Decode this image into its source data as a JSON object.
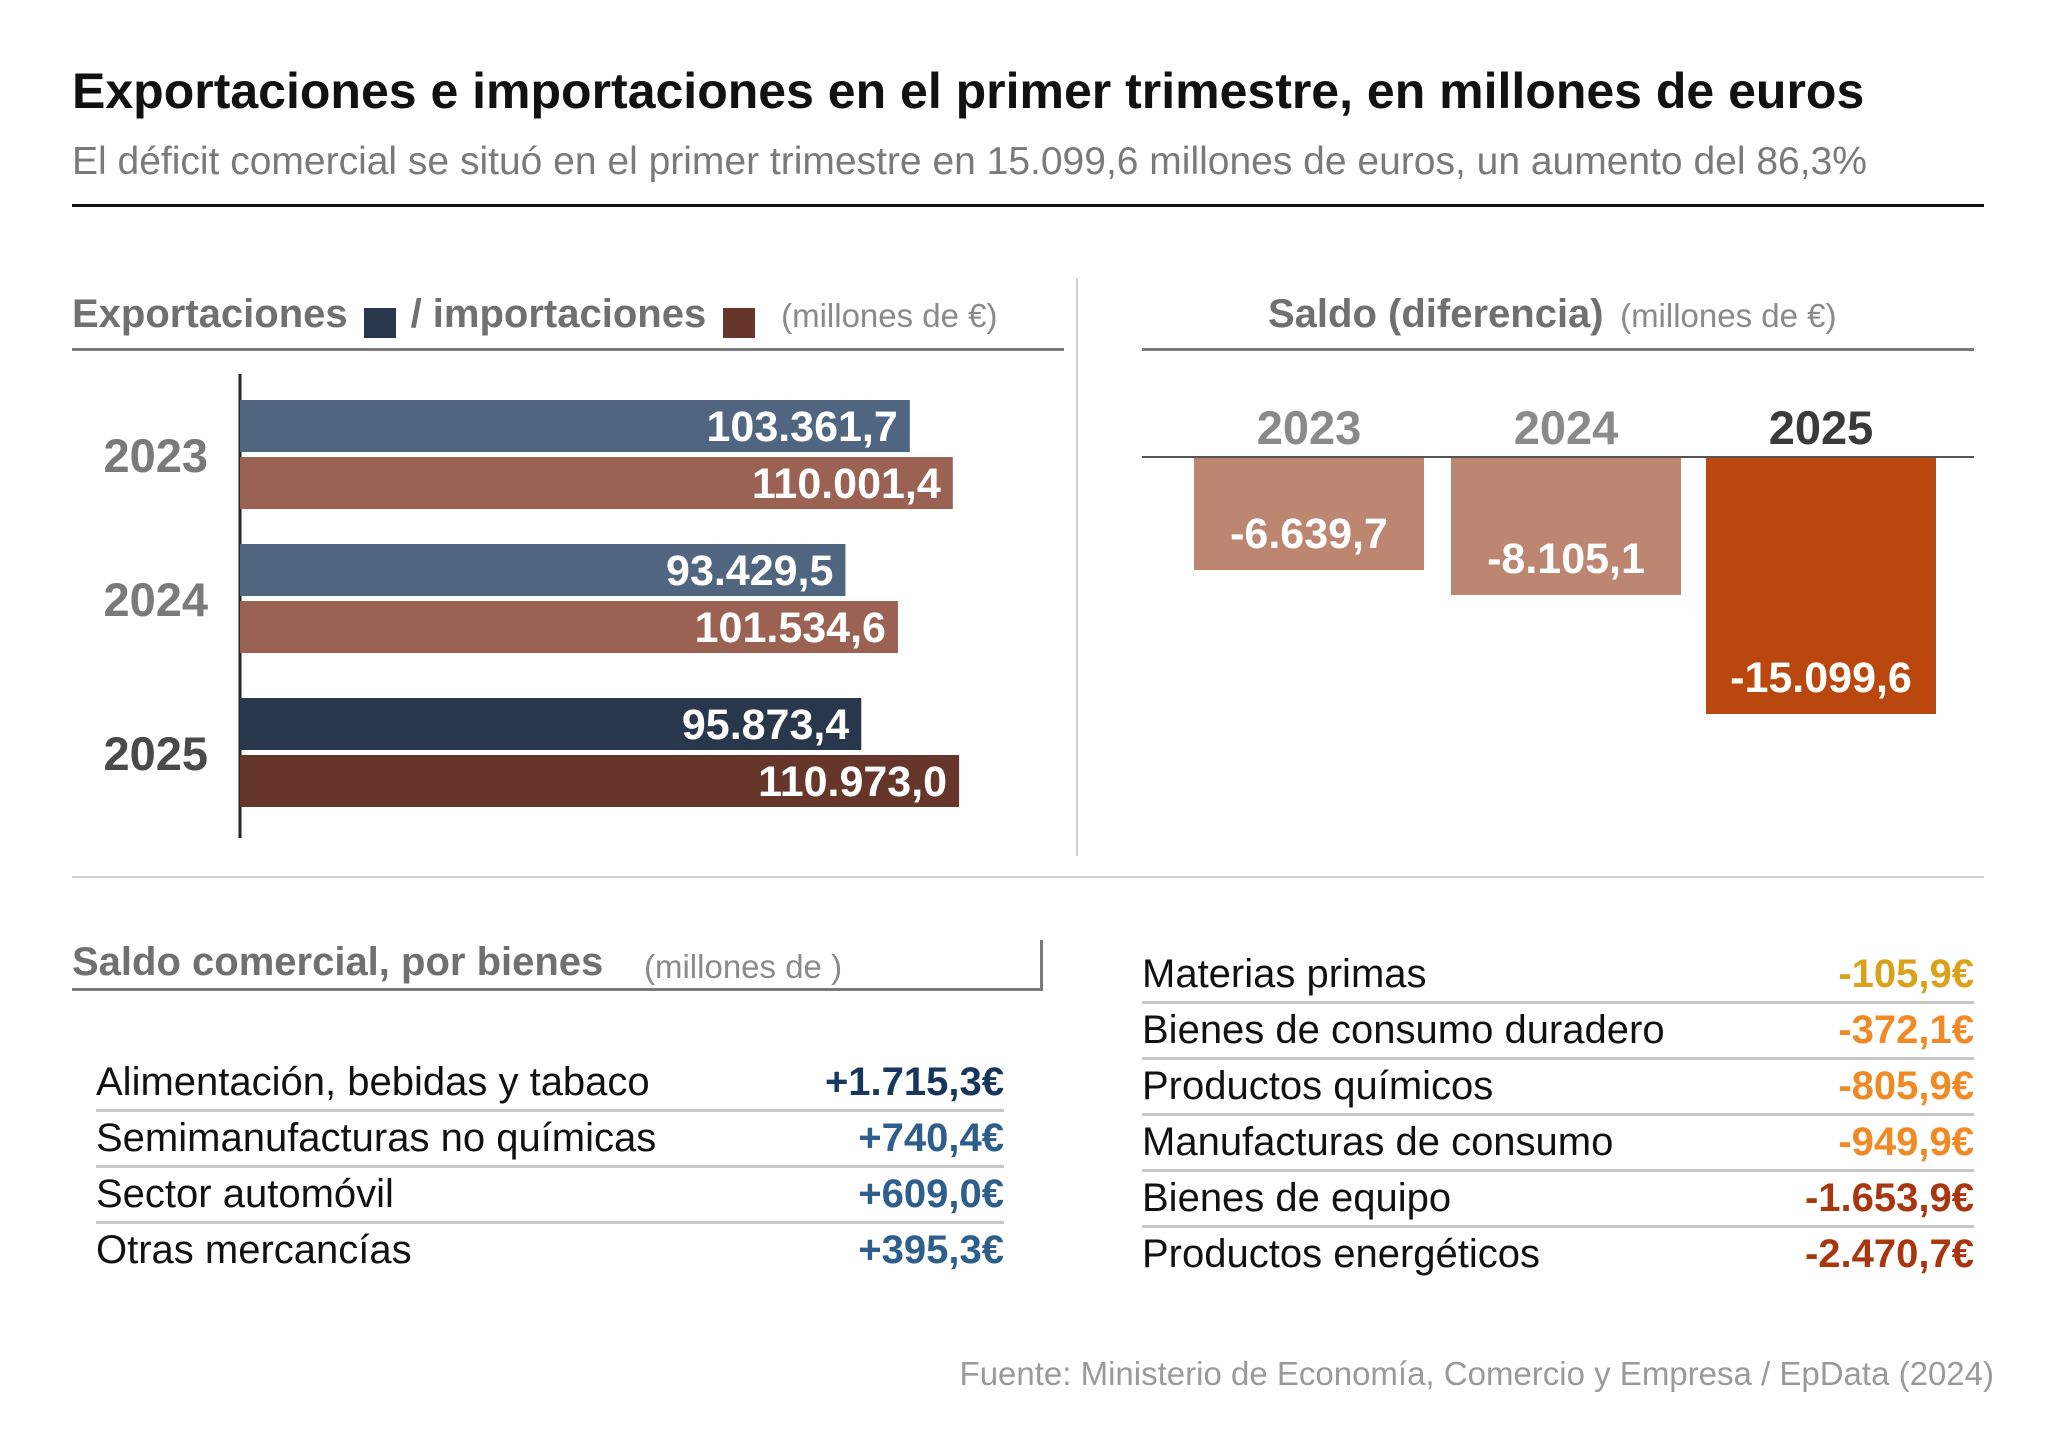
{
  "title": "Exportaciones e importaciones en el primer trimestre, en millones de euros",
  "subtitle": "El déficit comercial se situó en el primer trimestre en 15.099,6 millones de euros, un aumento del 86,3%",
  "left_panel": {
    "legend_exports": "Exportaciones",
    "legend_imports": "/ importaciones",
    "unit": "(millones de €)"
  },
  "right_panel": {
    "title": "Saldo (diferencia)",
    "unit": "(millones de €)"
  },
  "goods_panel": {
    "title": "Saldo comercial, por bienes",
    "unit": "(millones de )",
    "positive": [
      {
        "label": "Alimentación, bebidas y tabaco",
        "value": "+1.715,3€",
        "color": "#17365d"
      },
      {
        "label": "Semimanufacturas no químicas",
        "value": "+740,4€",
        "color": "#2e5e8c"
      },
      {
        "label": "Sector automóvil",
        "value": "+609,0€",
        "color": "#2e5e8c"
      },
      {
        "label": "Otras mercancías",
        "value": "+395,3€",
        "color": "#2e5e8c"
      }
    ],
    "negative": [
      {
        "label": "Materias primas",
        "value": "-105,9€",
        "color": "#d9a21b"
      },
      {
        "label": "Bienes de consumo duradero",
        "value": "-372,1€",
        "color": "#f08a24"
      },
      {
        "label": "Productos químicos",
        "value": "-805,9€",
        "color": "#f08a24"
      },
      {
        "label": "Manufacturas de consumo",
        "value": "-949,9€",
        "color": "#f08a24"
      },
      {
        "label": "Bienes de equipo",
        "value": "-1.653,9€",
        "color": "#a8360e"
      },
      {
        "label": "Productos energéticos",
        "value": "-2.470,7€",
        "color": "#a8360e"
      }
    ]
  },
  "source": "Fuente: Ministerio de Economía, Comercio y Empresa / EpData (2024)",
  "colors": {
    "exports_past": "#506580",
    "imports_past": "#9b6152",
    "exports_current": "#28374b",
    "imports_current": "#66362a",
    "saldo_past": "#bc8670",
    "saldo_current": "#ba480e"
  },
  "chart_data": [
    {
      "type": "bar",
      "orientation": "horizontal",
      "categories": [
        "2023",
        "2024",
        "2025"
      ],
      "series": [
        {
          "name": "Exportaciones",
          "values": [
            103361.7,
            93429.5,
            95873.4
          ],
          "labels": [
            "103.361,7",
            "93.429,5",
            "95.873,4"
          ]
        },
        {
          "name": "importaciones",
          "values": [
            110001.4,
            101534.6,
            110973.0
          ],
          "labels": [
            "110.001,4",
            "101.534,6",
            "110.973,0"
          ]
        }
      ],
      "xlim": [
        0,
        150000
      ],
      "grid": false,
      "legend": "top-left"
    },
    {
      "type": "bar",
      "title": "Saldo (diferencia)",
      "categories": [
        "2023",
        "2024",
        "2025"
      ],
      "values": [
        -6639.7,
        -8105.1,
        -15099.6
      ],
      "labels": [
        "-6.639,7",
        "-8.105,1",
        "-15.099,6"
      ],
      "ylim": [
        -15099.6,
        0
      ],
      "grid": false
    }
  ]
}
